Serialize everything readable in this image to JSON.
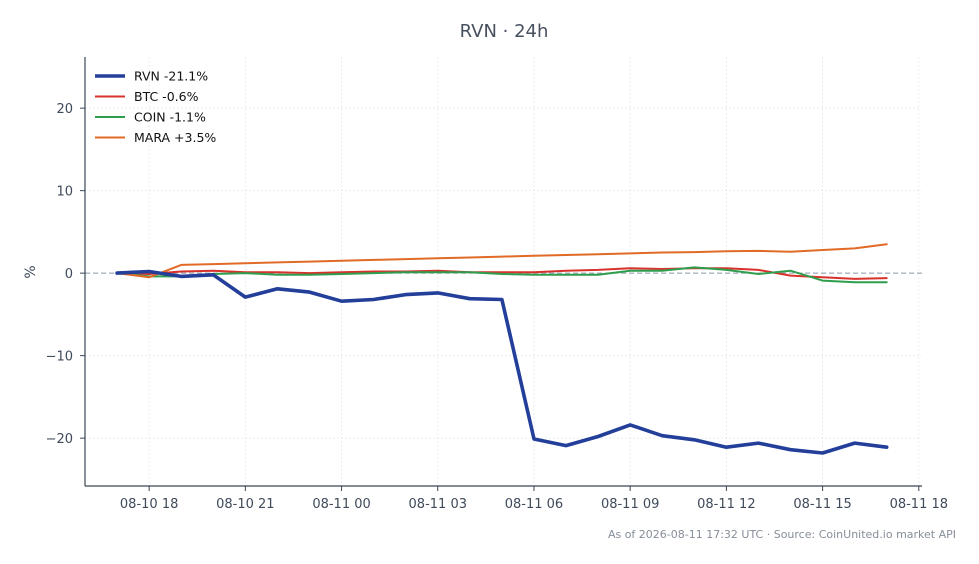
{
  "chart_data": {
    "type": "line",
    "title": "RVN · 24h",
    "xlabel": "",
    "ylabel": "%",
    "x_tick_labels": [
      "08-10 18",
      "08-10 21",
      "08-11 00",
      "08-11 03",
      "08-11 06",
      "08-11 09",
      "08-11 12",
      "08-11 15",
      "08-11 18"
    ],
    "x_ticks_hours": [
      18,
      21,
      24,
      27,
      30,
      33,
      36,
      39,
      42
    ],
    "xlim_hours": [
      16.0,
      42.1
    ],
    "y_ticks": [
      20,
      10,
      0,
      -10,
      -20
    ],
    "y_tick_labels": [
      "20",
      "10",
      "0",
      "−10",
      "−20"
    ],
    "ylim": [
      -25.8,
      26.2
    ],
    "grid": true,
    "zero_line": true,
    "legend_position": "top-left",
    "x_hours": [
      17,
      18,
      19,
      20,
      21,
      22,
      23,
      24,
      25,
      26,
      27,
      28,
      29,
      30,
      31,
      32,
      33,
      34,
      35,
      36,
      37,
      38,
      39,
      40,
      41
    ],
    "series": [
      {
        "name": "RVN",
        "legend_label": "RVN -21.1%",
        "color": "#233f9a",
        "emphasis": true,
        "values": [
          0.0,
          0.2,
          -0.4,
          -0.2,
          -2.9,
          -1.9,
          -2.3,
          -3.4,
          -3.2,
          -2.6,
          -2.4,
          -3.1,
          -3.2,
          -20.1,
          -20.9,
          -19.8,
          -18.4,
          -19.7,
          -20.2,
          -21.1,
          -20.6,
          -21.4,
          -21.8,
          -20.6,
          -21.1
        ]
      },
      {
        "name": "BTC",
        "legend_label": "BTC -0.6%",
        "color": "#d7322c",
        "values": [
          0.0,
          -0.1,
          0.2,
          0.3,
          0.1,
          0.1,
          0.0,
          0.1,
          0.2,
          0.2,
          0.3,
          0.1,
          0.1,
          0.1,
          0.3,
          0.4,
          0.6,
          0.5,
          0.6,
          0.6,
          0.4,
          -0.3,
          -0.5,
          -0.7,
          -0.6
        ]
      },
      {
        "name": "COIN",
        "legend_label": "COIN -1.1%",
        "color": "#2e9e4e",
        "values": [
          0.0,
          -0.4,
          -0.4,
          -0.1,
          0.0,
          -0.2,
          -0.2,
          -0.1,
          0.0,
          0.1,
          0.1,
          0.1,
          -0.1,
          -0.2,
          -0.2,
          -0.2,
          0.3,
          0.3,
          0.7,
          0.4,
          -0.1,
          0.3,
          -0.9,
          -1.1,
          -1.1
        ]
      },
      {
        "name": "MARA",
        "legend_label": "MARA +3.5%",
        "color": "#e06a26",
        "values": [
          0.0,
          -0.5,
          1.0,
          1.1,
          1.2,
          1.3,
          1.4,
          1.5,
          1.6,
          1.7,
          1.8,
          1.9,
          2.0,
          2.1,
          2.2,
          2.3,
          2.4,
          2.5,
          2.55,
          2.65,
          2.7,
          2.6,
          2.8,
          3.0,
          3.5
        ]
      }
    ]
  },
  "footer": {
    "note": "As of 2026-08-11 17:32 UTC · Source: CoinUnited.io market API"
  }
}
